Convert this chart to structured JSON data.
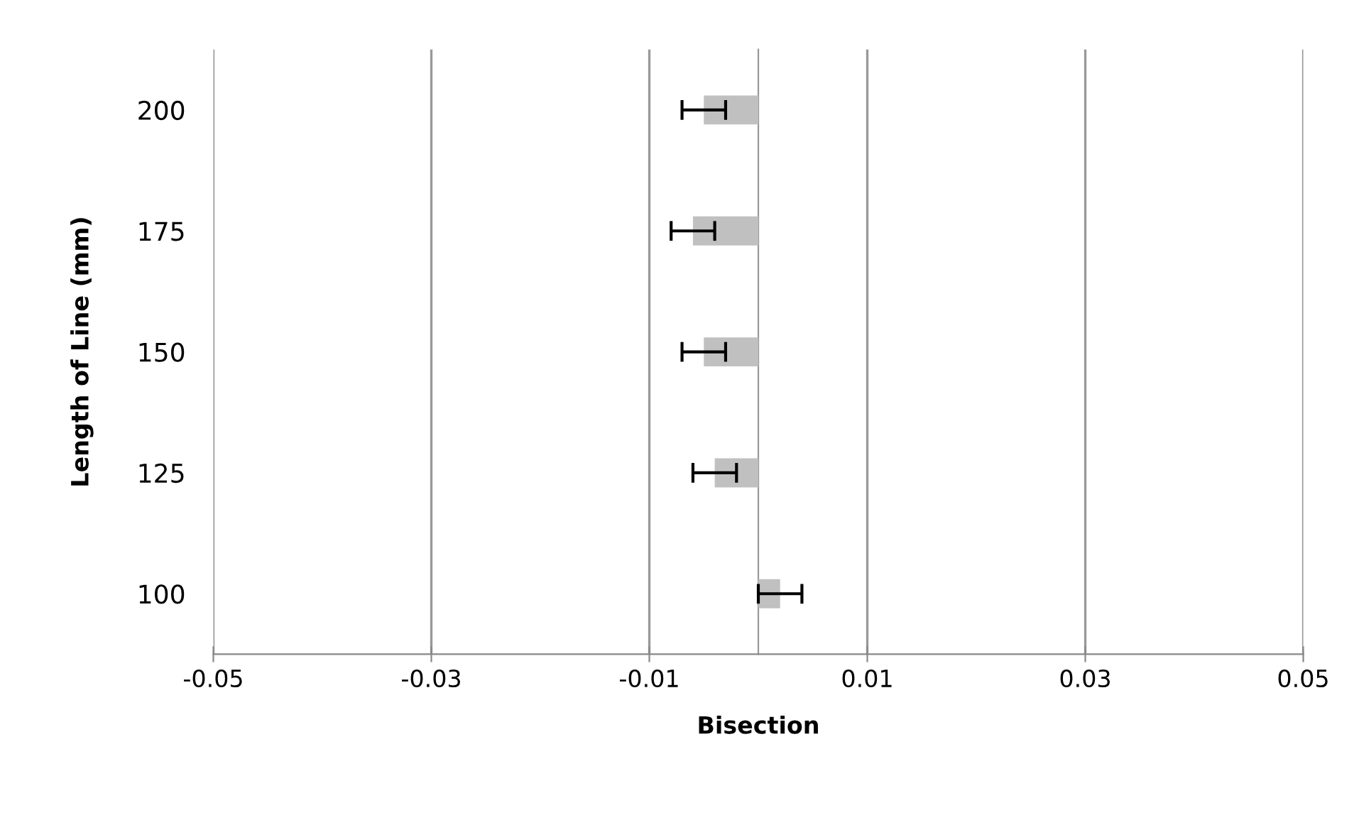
{
  "chart_data": {
    "type": "bar",
    "orientation": "horizontal",
    "xlabel": "Bisection",
    "ylabel": "Length of Line (mm)",
    "categories": [
      "200",
      "175",
      "150",
      "125",
      "100"
    ],
    "values": [
      -0.005,
      -0.006,
      -0.005,
      -0.004,
      0.002
    ],
    "errors": [
      0.002,
      0.002,
      0.002,
      0.002,
      0.002
    ],
    "color": "#c0c0c0",
    "xlim": [
      -0.05,
      0.05
    ],
    "xticks": [
      -0.05,
      -0.03,
      -0.01,
      0.01,
      0.03,
      0.05
    ],
    "grid": "x"
  }
}
